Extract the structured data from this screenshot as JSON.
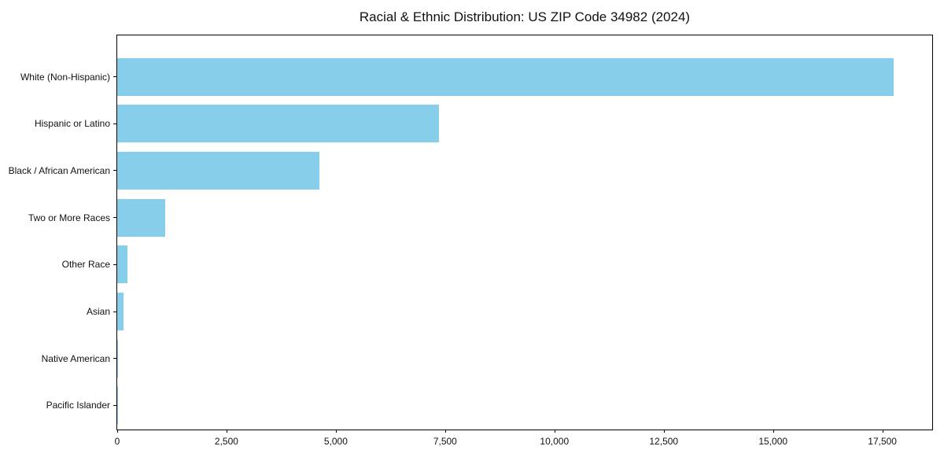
{
  "figure": {
    "title": "Racial & Ethnic Distribution: US ZIP Code 34982 (2024)"
  },
  "chart_data": {
    "type": "bar",
    "orientation": "horizontal",
    "title": "Racial & Ethnic Distribution: US ZIP Code 34982 (2024)",
    "categories": [
      "White (Non-Hispanic)",
      "Hispanic or Latino",
      "Black / African American",
      "Two or More Races",
      "Other Race",
      "Asian",
      "Native American",
      "Pacific Islander"
    ],
    "values": [
      17750,
      7360,
      4620,
      1100,
      225,
      140,
      15,
      5
    ],
    "xlabel": "",
    "ylabel": "",
    "xlim": [
      0,
      18640
    ],
    "x_ticks": [
      0,
      2500,
      5000,
      7500,
      10000,
      12500,
      15000,
      17500
    ],
    "x_tick_labels": [
      "0",
      "2,500",
      "5,000",
      "7,500",
      "10,000",
      "12,500",
      "15,000",
      "17,500"
    ],
    "bar_color": "#87CEEB",
    "grid": false,
    "legend": "none"
  }
}
